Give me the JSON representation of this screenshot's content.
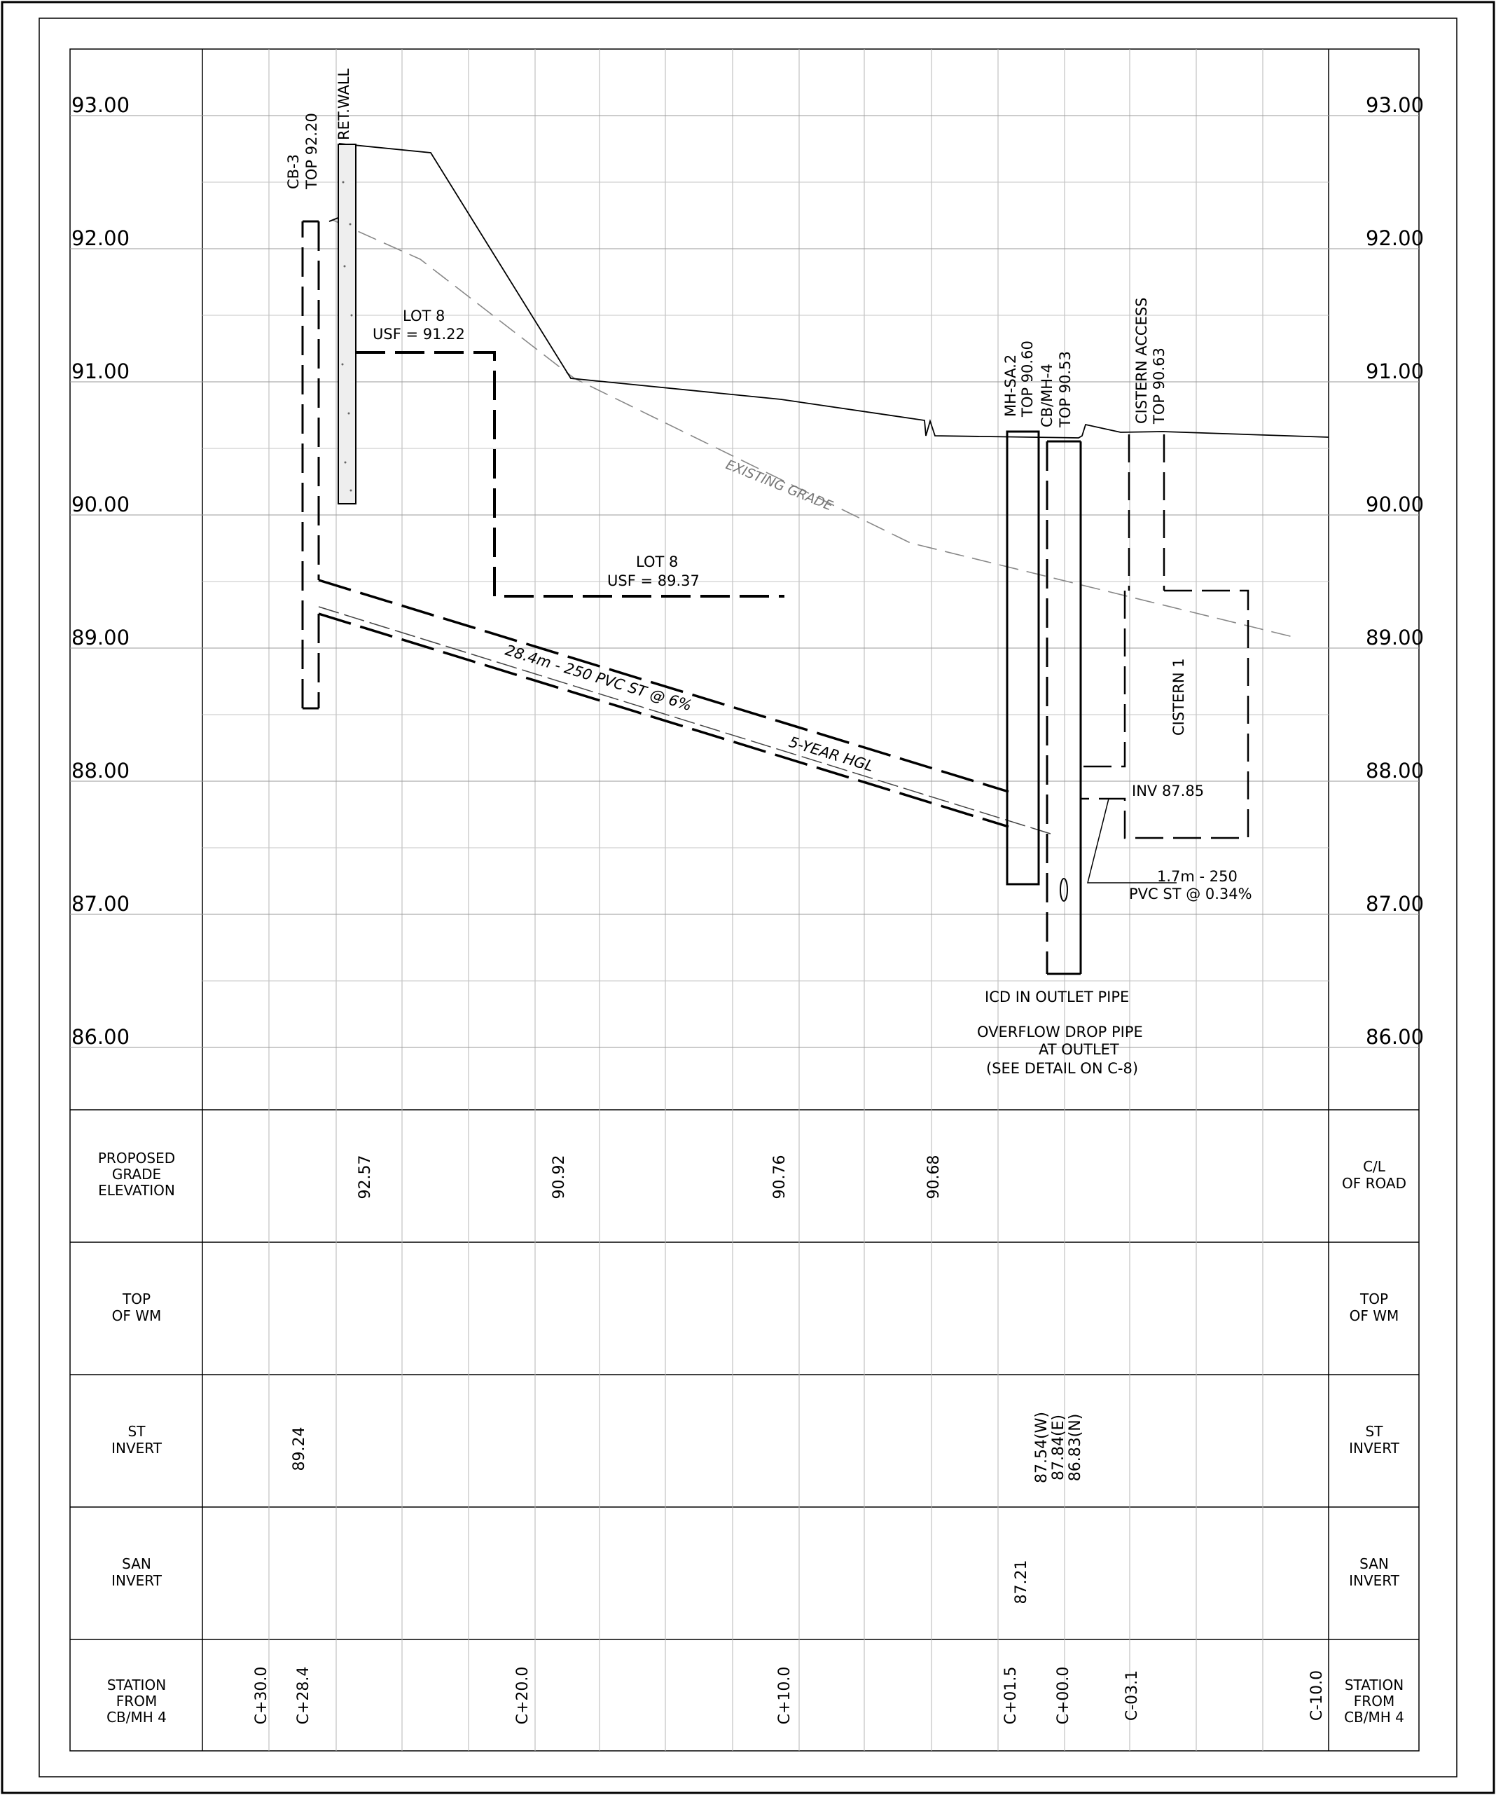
{
  "elevation_labels": [
    "93.00",
    "92.00",
    "91.00",
    "90.00",
    "89.00",
    "88.00",
    "87.00",
    "86.00"
  ],
  "annotations": {
    "cb3_name": "CB-3",
    "cb3_top": "TOP 92.20",
    "ret_wall": "RET.WALL",
    "lot8_upper": "LOT 8",
    "usf_upper": "USF = 91.22",
    "lot8_lower": "LOT 8",
    "usf_lower": "USF = 89.37",
    "existing_grade": "EXISTING GRADE",
    "pipe_main": "28.4m - 250 PVC ST @ 6%",
    "hgl": "5-YEAR HGL",
    "mh_name": "MH-SA.2",
    "mh_top": "TOP 90.60",
    "cbmh_name": "CB/MH-4",
    "cbmh_top": "TOP 90.53",
    "cistern_access": "CISTERN ACCESS",
    "cistern_top": "TOP 90.63",
    "cistern_1": "CISTERN 1",
    "inv": "INV 87.85",
    "pipe_short_1": "1.7m - 250",
    "pipe_short_2": "PVC ST @ 0.34%",
    "icd": "ICD IN OUTLET PIPE",
    "overflow_1": "OVERFLOW DROP PIPE",
    "overflow_2": "AT OUTLET",
    "overflow_3": "(SEE DETAIL ON C-8)"
  },
  "table": {
    "rows": [
      {
        "left": [
          "PROPOSED",
          "GRADE",
          "ELEVATION"
        ],
        "right": [
          "C/L",
          "OF ROAD"
        ],
        "values": [
          "92.57",
          "90.92",
          "90.76",
          "90.68"
        ]
      },
      {
        "left": [
          "TOP",
          "OF WM"
        ],
        "right": [
          "TOP",
          "OF WM"
        ],
        "values": []
      },
      {
        "left": [
          "ST",
          "INVERT"
        ],
        "right": [
          "ST",
          "INVERT"
        ],
        "values": [
          "89.24",
          "87.54(W)",
          "87.84(E)",
          "86.83(N)"
        ]
      },
      {
        "left": [
          "SAN",
          "INVERT"
        ],
        "right": [
          "SAN",
          "INVERT"
        ],
        "values": [
          "87.21"
        ]
      },
      {
        "left": [
          "STATION",
          "FROM",
          "CB/MH 4"
        ],
        "right": [
          "STATION",
          "FROM",
          "CB/MH 4"
        ],
        "values": [
          "C+30.0",
          "C+28.4",
          "C+20.0",
          "C+10.0",
          "C+01.5",
          "C+00.0",
          "C-03.1",
          "C-10.0"
        ]
      }
    ]
  }
}
